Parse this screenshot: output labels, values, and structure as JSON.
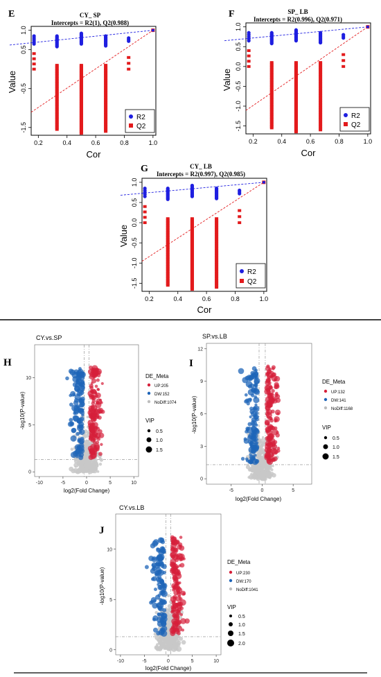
{
  "perm_panels": [
    {
      "label": "E",
      "title1": "CY_ SP",
      "title2": "Intercepts = R2(1), Q2(0.988)",
      "r2_intercept": 0.62,
      "q2_intercept": -1.48,
      "ylabel": "Value",
      "xlabel": "Cor",
      "legend": [
        "R2",
        "Q2"
      ],
      "xticks": [
        "0.2",
        "0.4",
        "0.6",
        "0.8",
        "1.0"
      ],
      "yticks": [
        "1.0",
        "0.5",
        "-0.5",
        "-1.5"
      ],
      "xlim": [
        0.15,
        1.02
      ],
      "ylim": [
        -1.7,
        1.1
      ]
    },
    {
      "label": "F",
      "title1": "SP_ LB",
      "title2": "Intercepts = R2(0.996), Q2(0.971)",
      "r2_intercept": 0.65,
      "q2_intercept": -1.48,
      "ylabel": "Value",
      "xlabel": "Cor",
      "legend": [
        "R2",
        "Q2"
      ],
      "xticks": [
        "0.2",
        "0.4",
        "0.6",
        "0.8",
        "1.0"
      ],
      "yticks": [
        "1.0",
        "0.5",
        "0.0",
        "-0.5",
        "-1.0",
        "-1.5"
      ],
      "xlim": [
        0.15,
        1.02
      ],
      "ylim": [
        -1.7,
        1.1
      ]
    },
    {
      "label": "G",
      "title1": "CY_ LB",
      "title2": "Intercepts = R2(0.997), Q2(0.985)",
      "r2_intercept": 0.68,
      "q2_intercept": -1.3,
      "ylabel": "Value",
      "xlabel": "Cor",
      "legend": [
        "R2",
        "Q2"
      ],
      "xticks": [
        "0.2",
        "0.4",
        "0.6",
        "0.8",
        "1.0"
      ],
      "yticks": [
        "1.0",
        "0.5",
        "0.0",
        "-0.5",
        "-1.0",
        "-1.5"
      ],
      "xlim": [
        0.15,
        1.02
      ],
      "ylim": [
        -1.7,
        1.1
      ]
    }
  ],
  "volcano_panels": [
    {
      "label": "H",
      "title": "CY.vs.SP",
      "xlabel": "log2(Fold Change)",
      "ylabel": "-log10(P-value)",
      "xticks": [
        "-10",
        "-5",
        "0",
        "5",
        "10"
      ],
      "yticks": [
        "0",
        "5",
        "10"
      ],
      "xlim": [
        -11,
        11
      ],
      "ylim": [
        -0.5,
        13.5
      ],
      "threshold": 1.3,
      "legend_title": "DE_Meta",
      "up": "UP:205",
      "dw": "DW:152",
      "nodiff": "NoDiff:1074",
      "vip_title": "VIP",
      "vip": [
        "0.5",
        "1.0",
        "1.5"
      ]
    },
    {
      "label": "I",
      "title": "SP.vs.LB",
      "xlabel": "log2(Fold Change)",
      "ylabel": "-log10(P-value)",
      "xticks": [
        "-5",
        "0",
        "5"
      ],
      "yticks": [
        "0",
        "3",
        "6",
        "9",
        "12"
      ],
      "xlim": [
        -9,
        8
      ],
      "ylim": [
        -0.5,
        12.5
      ],
      "threshold": 1.3,
      "legend_title": "DE_Meta",
      "up": "UP:132",
      "dw": "DW:141",
      "nodiff": "NoDiff:1168",
      "vip_title": "VIP",
      "vip": [
        "0.5",
        "1.0",
        "1.5"
      ]
    },
    {
      "label": "J",
      "title": "CY.vs.LB",
      "xlabel": "log2(Fold Change)",
      "ylabel": "-log10(P-value)",
      "xticks": [
        "-10",
        "-5",
        "0",
        "5",
        "10"
      ],
      "yticks": [
        "0",
        "5",
        "10"
      ],
      "xlim": [
        -11,
        11
      ],
      "ylim": [
        -0.5,
        13.5
      ],
      "threshold": 1.3,
      "legend_title": "DE_Meta",
      "up": "UP:230",
      "dw": "DW:170",
      "nodiff": "NoDiff:1041",
      "vip_title": "VIP",
      "vip": [
        "0.5",
        "1.0",
        "1.5",
        "2.0"
      ]
    }
  ],
  "colors": {
    "r2": "#1f1fe0",
    "q2": "#e31a1c",
    "up": "#d6203a",
    "dw": "#1f65b8",
    "nodiff": "#c8c8c8"
  },
  "chart_data": [
    {
      "type": "scatter",
      "title": "CY_ SP",
      "subtitle": "Intercepts = R2(1), Q2(0.988)",
      "xlabel": "Cor",
      "ylabel": "Value",
      "series": [
        {
          "name": "R2",
          "x": [
            0.17,
            0.33,
            0.5,
            0.67,
            0.83,
            1.0
          ],
          "y": [
            0.78,
            0.75,
            0.8,
            0.75,
            0.75,
            1.0
          ]
        },
        {
          "name": "Q2",
          "x": [
            0.17,
            0.33,
            0.5,
            0.67,
            0.83,
            1.0
          ],
          "y": [
            0.2,
            -0.7,
            -0.8,
            -0.6,
            0.1,
            0.99
          ]
        }
      ]
    },
    {
      "type": "scatter",
      "title": "SP_ LB",
      "subtitle": "Intercepts = R2(0.996), Q2(0.971)",
      "xlabel": "Cor",
      "ylabel": "Value",
      "series": [
        {
          "name": "R2",
          "x": [
            0.17,
            0.33,
            0.5,
            0.67,
            0.83,
            1.0
          ],
          "y": [
            0.8,
            0.8,
            0.85,
            0.82,
            0.8,
            1.0
          ]
        },
        {
          "name": "Q2",
          "x": [
            0.17,
            0.33,
            0.5,
            0.67,
            0.83,
            1.0
          ],
          "y": [
            0.2,
            -0.7,
            -0.7,
            -0.6,
            0.0,
            0.97
          ]
        }
      ]
    },
    {
      "type": "scatter",
      "title": "CY_ LB",
      "subtitle": "Intercepts = R2(0.997), Q2(0.985)",
      "xlabel": "Cor",
      "ylabel": "Value",
      "series": [
        {
          "name": "R2",
          "x": [
            0.17,
            0.33,
            0.5,
            0.67,
            0.83,
            1.0
          ],
          "y": [
            0.82,
            0.8,
            0.85,
            0.82,
            0.82,
            1.0
          ]
        },
        {
          "name": "Q2",
          "x": [
            0.17,
            0.33,
            0.5,
            0.67,
            0.83,
            1.0
          ],
          "y": [
            0.2,
            -0.6,
            -0.7,
            -0.6,
            0.1,
            0.99
          ]
        }
      ]
    },
    {
      "type": "scatter",
      "title": "CY.vs.SP",
      "xlabel": "log2(Fold Change)",
      "ylabel": "-log10(P-value)",
      "series": [
        {
          "name": "UP",
          "count": 205
        },
        {
          "name": "DW",
          "count": 152
        },
        {
          "name": "NoDiff",
          "count": 1074
        }
      ]
    },
    {
      "type": "scatter",
      "title": "SP.vs.LB",
      "xlabel": "log2(Fold Change)",
      "ylabel": "-log10(P-value)",
      "series": [
        {
          "name": "UP",
          "count": 132
        },
        {
          "name": "DW",
          "count": 141
        },
        {
          "name": "NoDiff",
          "count": 1168
        }
      ]
    },
    {
      "type": "scatter",
      "title": "CY.vs.LB",
      "xlabel": "log2(Fold Change)",
      "ylabel": "-log10(P-value)",
      "series": [
        {
          "name": "UP",
          "count": 230
        },
        {
          "name": "DW",
          "count": 170
        },
        {
          "name": "NoDiff",
          "count": 1041
        }
      ]
    }
  ]
}
